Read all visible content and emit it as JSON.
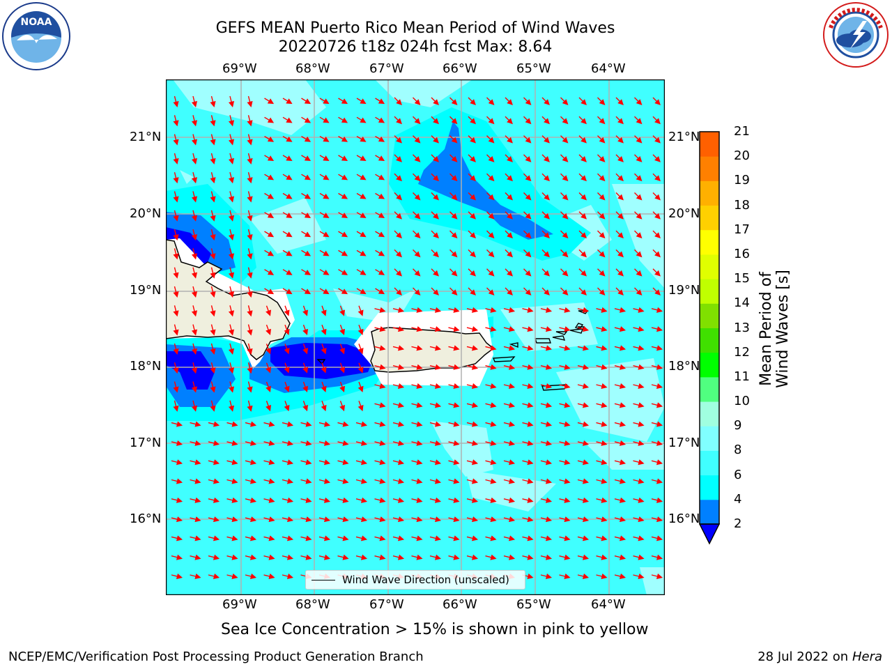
{
  "header": {
    "title_line1": "GEFS MEAN Puerto Rico Mean Period of Wind Waves",
    "title_line2": "20220726 t18z 024h fcst   Max: 8.64"
  },
  "logos": {
    "noaa": {
      "icon": "noaa-logo",
      "text": "NOAA",
      "ring_text": "NATIONAL OCEANIC AND ATMOSPHERIC ADMINISTRATION · U.S. DEPARTMENT OF COMMERCE"
    },
    "nws": {
      "icon": "nws-logo",
      "ring_text": "NATIONAL WEATHER SERVICE"
    }
  },
  "map": {
    "lon_labels": [
      "69°W",
      "68°W",
      "67°W",
      "66°W",
      "65°W",
      "64°W"
    ],
    "lat_labels": [
      "21°N",
      "20°N",
      "19°N",
      "18°N",
      "17°N",
      "16°N"
    ],
    "legend": "Wind Wave Direction (unscaled)",
    "arrow_color": "#ff0000"
  },
  "colorbar": {
    "label": "Mean Period of Wind Waves [s]",
    "ticks": [
      "21",
      "20",
      "19",
      "18",
      "17",
      "16",
      "15",
      "14",
      "13",
      "12",
      "11",
      "10",
      "9",
      "8",
      "6",
      "4",
      "2"
    ],
    "colors": [
      "#0000ff",
      "#0080ff",
      "#00ffff",
      "#40ffff",
      "#80ffff",
      "#a0ffe0",
      "#50ff80",
      "#00ff00",
      "#40e000",
      "#80e000",
      "#c0ff00",
      "#e0ff00",
      "#ffff00",
      "#ffd000",
      "#ffb000",
      "#ff8000",
      "#ff6000",
      "#ff3000",
      "#ff0000"
    ]
  },
  "notes": {
    "sea_ice": "Sea Ice Concentration > 15% is shown in pink to yellow"
  },
  "footer": {
    "left": "NCEP/EMC/Verification Post Processing Product Generation Branch",
    "right_date": "28 Jul 2022 on ",
    "right_machine": "Hera"
  }
}
